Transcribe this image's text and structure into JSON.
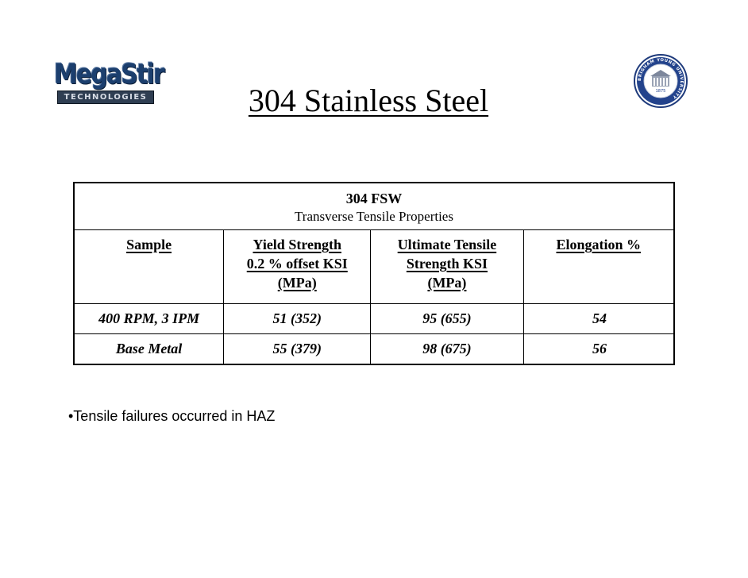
{
  "logo": {
    "name": "MegaStir",
    "tagline": "TECHNOLOGIES"
  },
  "seal": {
    "text": "BRIGHAM YOUNG UNIVERSITY",
    "year": "1875"
  },
  "title": "304 Stainless Steel",
  "table": {
    "caption": "304 FSW",
    "subcaption": "Transverse Tensile Properties",
    "headers": [
      {
        "lines": [
          "Sample"
        ]
      },
      {
        "lines": [
          "Yield Strength",
          "0.2 % offset KSI",
          "(MPa)"
        ]
      },
      {
        "lines": [
          "Ultimate Tensile",
          "Strength KSI",
          "(MPa)"
        ]
      },
      {
        "lines": [
          "Elongation %"
        ]
      }
    ],
    "rows": [
      {
        "sample": "400 RPM, 3 IPM",
        "yield": "51 (352)",
        "uts": "95 (655)",
        "elongation": "54"
      },
      {
        "sample": "Base Metal",
        "yield": "55 (379)",
        "uts": "98 (675)",
        "elongation": "56"
      }
    ]
  },
  "bullets": [
    "•Tensile failures occurred in HAZ"
  ]
}
